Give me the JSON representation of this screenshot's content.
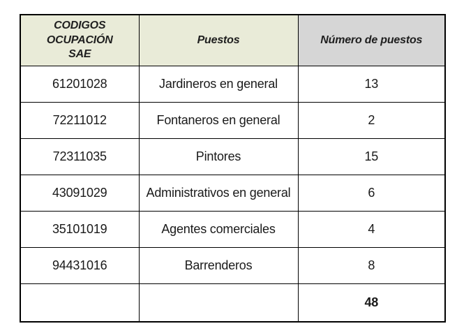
{
  "colors": {
    "header_green": "#e9ebd8",
    "header_gray": "#d6d6d6",
    "border": "#000000",
    "text": "#1a1a1a",
    "background": "#ffffff"
  },
  "table": {
    "headers": [
      "CODIGOS\nOCUPACIÓN\nSAE",
      "Puestos",
      "Número de puestos"
    ],
    "rows": [
      {
        "code": "61201028",
        "puesto": "Jardineros en general",
        "numero": "13"
      },
      {
        "code": "72211012",
        "puesto": "Fontaneros en general",
        "numero": "2"
      },
      {
        "code": "72311035",
        "puesto": "Pintores",
        "numero": "15"
      },
      {
        "code": "43091029",
        "puesto": "Administrativos en general",
        "numero": "6"
      },
      {
        "code": "35101019",
        "puesto": "Agentes comerciales",
        "numero": "4"
      },
      {
        "code": "94431016",
        "puesto": "Barrenderos",
        "numero": "8"
      }
    ],
    "total_row": {
      "code": "",
      "puesto": "",
      "numero": "48"
    }
  }
}
